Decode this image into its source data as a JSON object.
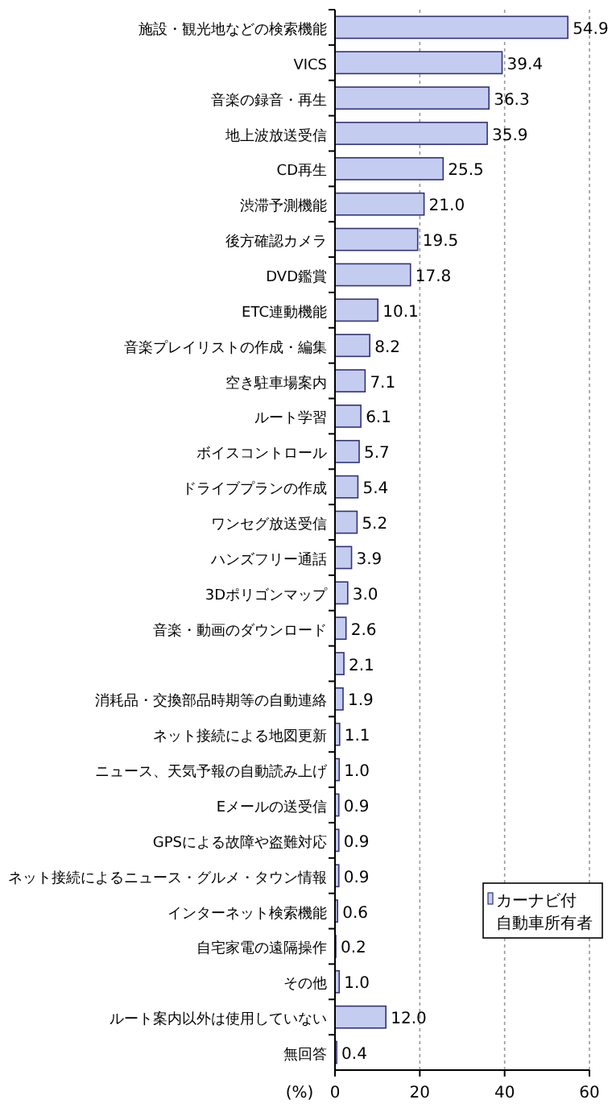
{
  "chart_data": {
    "type": "bar",
    "orientation": "horizontal",
    "xlabel": "(%)",
    "categories": [
      "施設・観光地などの検索機能",
      "VICS",
      "音楽の録音・再生",
      "地上波放送受信",
      "CD再生",
      "渋滞予測機能",
      "後方確認カメラ",
      "DVD鑑賞",
      "ETC連動機能",
      "音楽プレイリストの作成・編集",
      "空き駐車場案内",
      "ルート学習",
      "ボイスコントロール",
      "ドライブプランの作成",
      "ワンセグ放送受信",
      "ハンズフリー通話",
      "3Dポリゴンマップ",
      "音楽・動画のダウンロード",
      null,
      "消耗品・交換部品時期等の自動連絡",
      "ネット接続による地図更新",
      "ニュース、天気予報の自動読み上げ",
      "Eメールの送受信",
      "GPSによる故障や盗難対応",
      "ネット接続によるニュース・グルメ・タウン情報",
      "インターネット検索機能",
      "自宅家電の遠隔操作",
      "その他",
      "ルート案内以外は使用していない",
      "無回答"
    ],
    "series": [
      {
        "name": "カーナビ付自動車所有者",
        "color": "#c4ccf0",
        "values": [
          54.9,
          39.4,
          36.3,
          35.9,
          25.5,
          21.0,
          19.5,
          17.8,
          10.1,
          8.2,
          7.1,
          6.1,
          5.7,
          5.4,
          5.2,
          3.9,
          3.0,
          2.6,
          2.1,
          1.9,
          1.1,
          1.0,
          0.9,
          0.9,
          0.9,
          0.6,
          0.2,
          1.0,
          12.0,
          0.4
        ],
        "value_labels": [
          "54.9",
          "39.4",
          "36.3",
          "35.9",
          "25.5",
          "21.0",
          "19.5",
          "17.8",
          "10.1",
          "8.2",
          "7.1",
          "6.1",
          "5.7",
          "5.4",
          "5.2",
          "3.9",
          "3.0",
          "2.6",
          "2.1",
          "1.9",
          "1.1",
          "1.0",
          "0.9",
          "0.9",
          "0.9",
          "0.6",
          "0.2",
          "1.0",
          "12.0",
          "0.4"
        ]
      }
    ],
    "xlim": [
      0,
      60
    ],
    "xticks": [
      0,
      20,
      40,
      60
    ],
    "grid": "x",
    "legend": "bottom right"
  }
}
